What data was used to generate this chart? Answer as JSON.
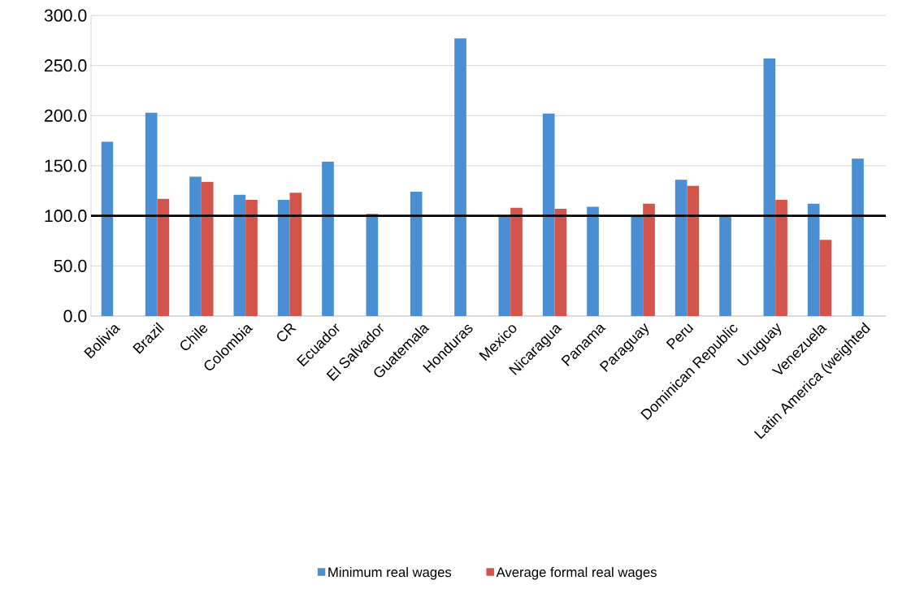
{
  "chart_data": {
    "type": "bar",
    "categories": [
      "Bolivia",
      "Brazil",
      "Chile",
      "Colombia",
      "CR",
      "Ecuador",
      "El Salvador",
      "Guatemala",
      "Honduras",
      "Mexico",
      "Nicaragua",
      "Panama",
      "Paraguay",
      "Peru",
      "Dominican Republic",
      "Uruguay",
      "Venezuela",
      "Latin America (weighted"
    ],
    "series": [
      {
        "name": "Minimum real wages",
        "color": "#4a8fd4",
        "values": [
          174,
          203,
          139,
          121,
          116,
          154,
          102,
          124,
          277,
          100,
          202,
          109,
          100,
          136,
          100,
          257,
          112,
          157
        ]
      },
      {
        "name": "Average formal real wages",
        "color": "#d3544a",
        "values": [
          null,
          117,
          134,
          116,
          123,
          null,
          null,
          null,
          null,
          108,
          107,
          null,
          112,
          130,
          null,
          116,
          76,
          null
        ]
      }
    ],
    "ylim": [
      0,
      300
    ],
    "yticks": [
      {
        "value": 0,
        "label": "0.0"
      },
      {
        "value": 50,
        "label": "50.0"
      },
      {
        "value": 100,
        "label": "100.0"
      },
      {
        "value": 150,
        "label": "150.0"
      },
      {
        "value": 200,
        "label": "200.0"
      },
      {
        "value": 250,
        "label": "250.0"
      },
      {
        "value": 300,
        "label": "300.0"
      }
    ],
    "ref_lines": [
      {
        "axis": "y",
        "value": 100,
        "color": "#000000"
      }
    ],
    "grid": "y",
    "legend": "bottom"
  }
}
